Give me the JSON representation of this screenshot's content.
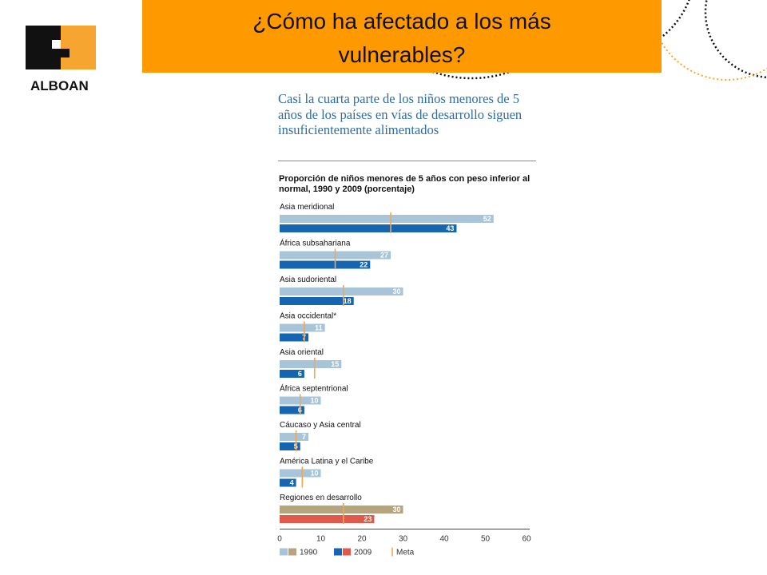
{
  "header": {
    "title_line1": "¿Cómo ha afectado a los más",
    "title_line2": "vulnerables?"
  },
  "brand": {
    "logo_text": "ALBOAN",
    "colors": {
      "dark": "#111111",
      "orange": "#f6a530",
      "title_bar": "#ff9900"
    }
  },
  "chart_data": {
    "type": "bar",
    "orientation": "horizontal",
    "title": "Casi la cuarta parte de los niños menores de 5 años de los países en vías de desarrollo siguen insuficientemente alimentados",
    "subtitle": "Proporción de niños menores de 5 años con peso inferior al normal, 1990 y 2009 (porcentaje)",
    "xlim": [
      0,
      60
    ],
    "x_ticks": [
      "0",
      "10",
      "20",
      "30",
      "40",
      "50",
      "60"
    ],
    "categories": [
      "Asia meridional",
      "África subsahariana",
      "Asia sudoriental",
      "Asia occidental*",
      "Asia oriental",
      "África septentrional",
      "Cáucaso y Asia central",
      "América Latina y el Caribe",
      "Regiones en desarrollo"
    ],
    "series": [
      {
        "name": "1990",
        "values": [
          52,
          27,
          30,
          11,
          15,
          10,
          7,
          10,
          30
        ]
      },
      {
        "name": "2009",
        "values": [
          43,
          22,
          18,
          7,
          6,
          6,
          5,
          4,
          23
        ]
      },
      {
        "name": "Meta",
        "values": [
          27,
          13.5,
          15.5,
          6,
          8.5,
          5,
          4,
          5.5,
          15.5
        ]
      }
    ],
    "colors": {
      "bar_1990": "#a7c4d8",
      "bar_2009": "#1565b0",
      "bar_1990_total": "#b5a47e",
      "bar_2009_total": "#e0594b",
      "meta": "#f4a74f"
    },
    "legend": {
      "position": "bottom",
      "labels": [
        "1990",
        "2009",
        "Meta"
      ]
    }
  }
}
